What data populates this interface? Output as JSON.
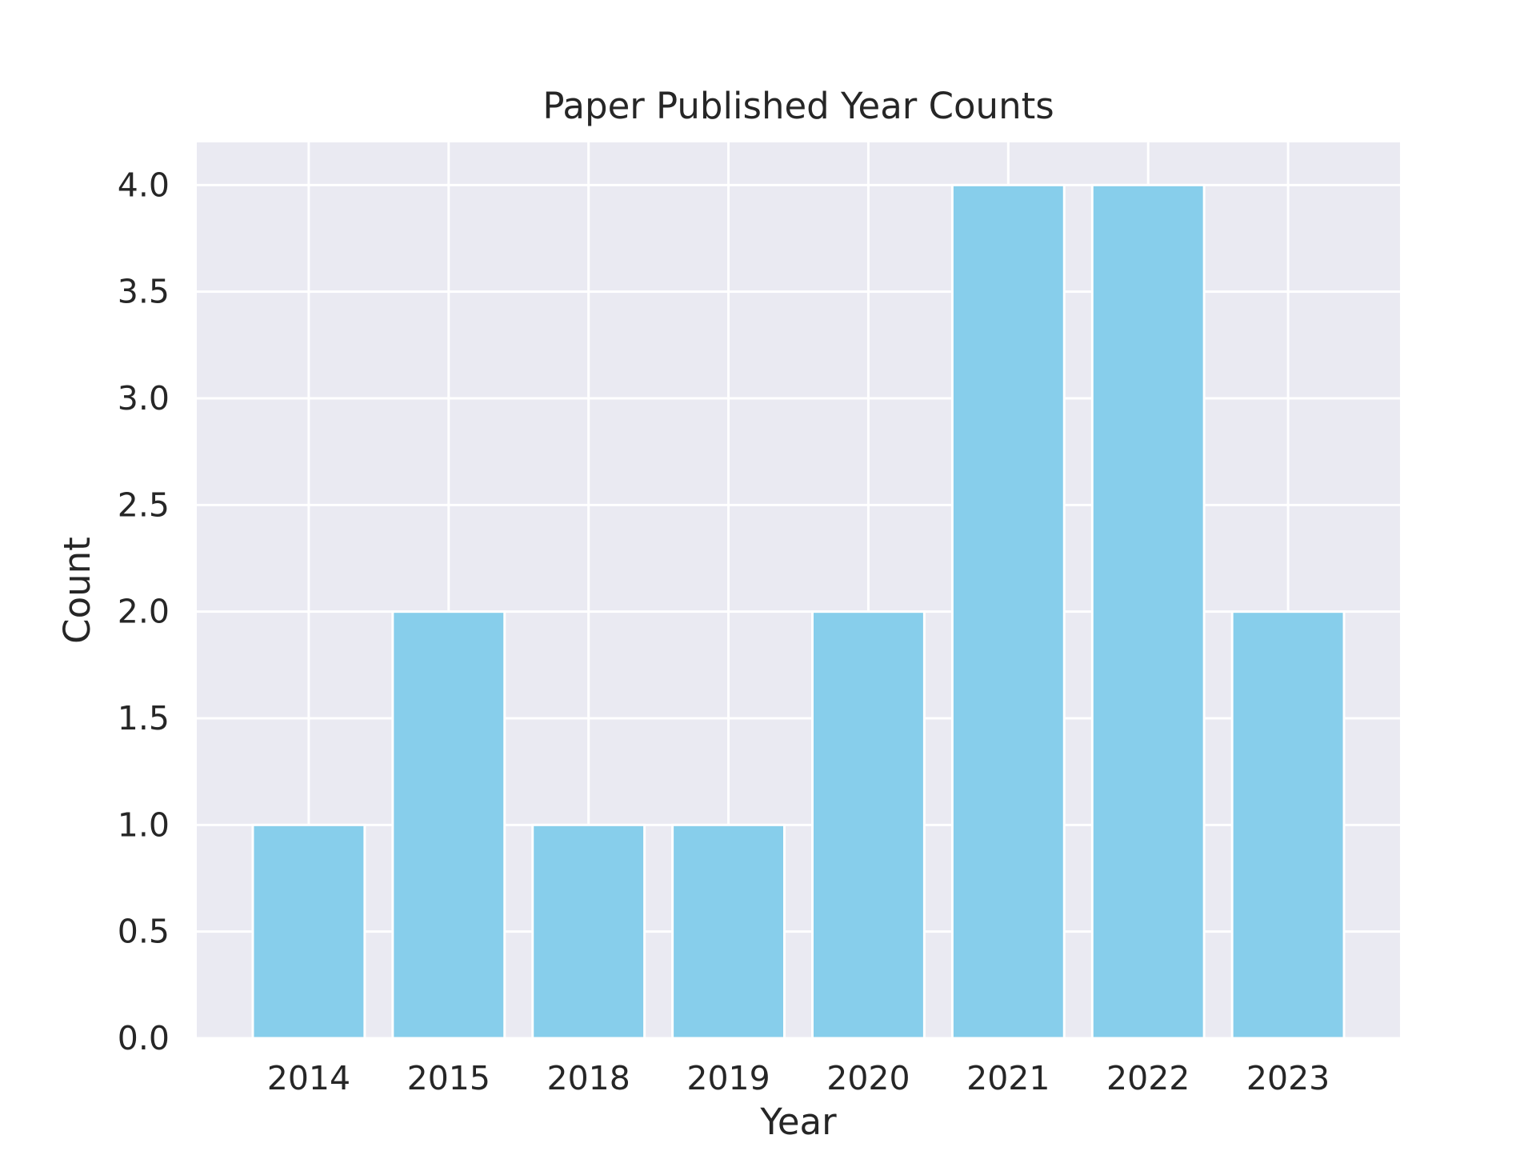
{
  "colors": {
    "figure_background": "#ffffff",
    "plot_background": "#eaeaf2",
    "grid": "#ffffff",
    "bar": "#87ceeb",
    "text": "#262626"
  },
  "chart_data": {
    "type": "bar",
    "title": "Paper Published Year Counts",
    "xlabel": "Year",
    "ylabel": "Count",
    "categories": [
      "2014",
      "2015",
      "2018",
      "2019",
      "2020",
      "2021",
      "2022",
      "2023"
    ],
    "values": [
      1,
      2,
      1,
      1,
      2,
      4,
      4,
      2
    ],
    "ylim": [
      0,
      4.2
    ],
    "yticks": [
      0.0,
      0.5,
      1.0,
      1.5,
      2.0,
      2.5,
      3.0,
      3.5,
      4.0
    ],
    "ytick_labels": [
      "0.0",
      "0.5",
      "1.0",
      "1.5",
      "2.0",
      "2.5",
      "3.0",
      "3.5",
      "4.0"
    ],
    "grid": true,
    "legend": "none"
  }
}
